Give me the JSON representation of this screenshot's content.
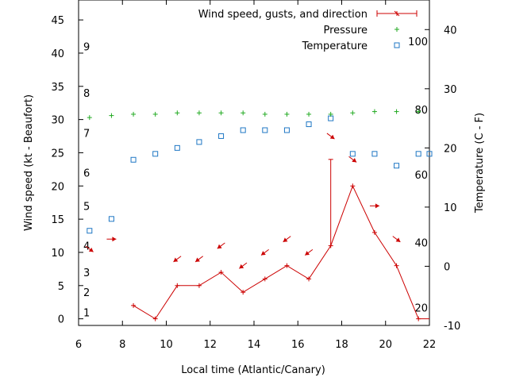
{
  "chart_data": {
    "type": "line",
    "xlabel": "Local time (Atlantic/Canary)",
    "ylabel": "Wind speed (kt - Beaufort)",
    "y2label": "Temperature (C - F)",
    "xlim": [
      6,
      22
    ],
    "ylim": [
      -1,
      48
    ],
    "y2lim": [
      -10,
      45
    ],
    "x_ticks": [
      6,
      8,
      10,
      12,
      14,
      16,
      18,
      20,
      22
    ],
    "y_ticks": [
      0,
      5,
      10,
      15,
      20,
      25,
      30,
      35,
      40,
      45
    ],
    "y2_ticks": [
      -10,
      0,
      10,
      20,
      30,
      40
    ],
    "beaufort_labels": [
      {
        "text": "1",
        "y": 1
      },
      {
        "text": "2",
        "y": 4
      },
      {
        "text": "3",
        "y": 7
      },
      {
        "text": "4",
        "y": 11
      },
      {
        "text": "5",
        "y": 17
      },
      {
        "text": "6",
        "y": 22
      },
      {
        "text": "7",
        "y": 28
      },
      {
        "text": "8",
        "y": 34
      },
      {
        "text": "9",
        "y": 41
      }
    ],
    "fahrenheit_labels": [
      {
        "text": "20",
        "y": -7
      },
      {
        "text": "40",
        "y": 4
      },
      {
        "text": "60",
        "y": 15.5
      },
      {
        "text": "80",
        "y": 26.5
      },
      {
        "text": "100",
        "y": 38
      }
    ],
    "legend_position": "top-right",
    "series": [
      {
        "name": "Wind speed, gusts, and direction",
        "axis": "y",
        "color": "#cc0000",
        "x": [
          8.5,
          9.5,
          10.5,
          11.5,
          12.5,
          13.5,
          14.5,
          15.5,
          16.5,
          17.5,
          18.5,
          19.5,
          20.5,
          21.5,
          22
        ],
        "values": [
          2,
          0,
          5,
          5,
          7,
          4,
          6,
          8,
          6,
          11,
          20,
          13,
          8,
          0,
          0
        ],
        "gusts": [
          {
            "x": 17.5,
            "low": 11,
            "high": 24
          }
        ]
      },
      {
        "name": "Pressure",
        "axis": "y",
        "color": "#22aa22",
        "x": [
          6.5,
          7.5,
          8.5,
          9.5,
          10.5,
          11.5,
          12.5,
          13.5,
          14.5,
          15.5,
          16.5,
          17.5,
          18.5,
          19.5,
          20.5,
          21.5
        ],
        "values": [
          30.3,
          30.6,
          30.8,
          30.8,
          31,
          31,
          31,
          31,
          30.8,
          30.8,
          30.8,
          30.8,
          31,
          31.2,
          31.2,
          31.2
        ]
      },
      {
        "name": "Temperature",
        "axis": "y2",
        "color": "#1f77c4",
        "x": [
          6.5,
          7.5,
          8.5,
          9.5,
          10.5,
          11.5,
          12.5,
          13.5,
          14.5,
          15.5,
          16.5,
          17.5,
          18.5,
          19.5,
          20.5,
          21.5,
          22
        ],
        "values": [
          6,
          8,
          18,
          19,
          20,
          21,
          22,
          23,
          23,
          23,
          24,
          25,
          19,
          19,
          17,
          19,
          19
        ]
      }
    ],
    "wind_direction_arrows": [
      {
        "x": 6.5,
        "y": 10.5,
        "dir": "down-right"
      },
      {
        "x": 7.5,
        "y": 12,
        "dir": "right"
      },
      {
        "x": 10.5,
        "y": 9,
        "dir": "down-left"
      },
      {
        "x": 11.5,
        "y": 9,
        "dir": "down-left"
      },
      {
        "x": 12.5,
        "y": 11,
        "dir": "down-left"
      },
      {
        "x": 13.5,
        "y": 8,
        "dir": "down-left"
      },
      {
        "x": 14.5,
        "y": 10,
        "dir": "down-left"
      },
      {
        "x": 15.5,
        "y": 12,
        "dir": "down-left"
      },
      {
        "x": 16.5,
        "y": 10,
        "dir": "down-left"
      },
      {
        "x": 17.5,
        "y": 27.5,
        "dir": "down-right"
      },
      {
        "x": 18.5,
        "y": 24,
        "dir": "down-right"
      },
      {
        "x": 19.5,
        "y": 17,
        "dir": "right"
      },
      {
        "x": 20.5,
        "y": 12,
        "dir": "down-right"
      }
    ]
  }
}
